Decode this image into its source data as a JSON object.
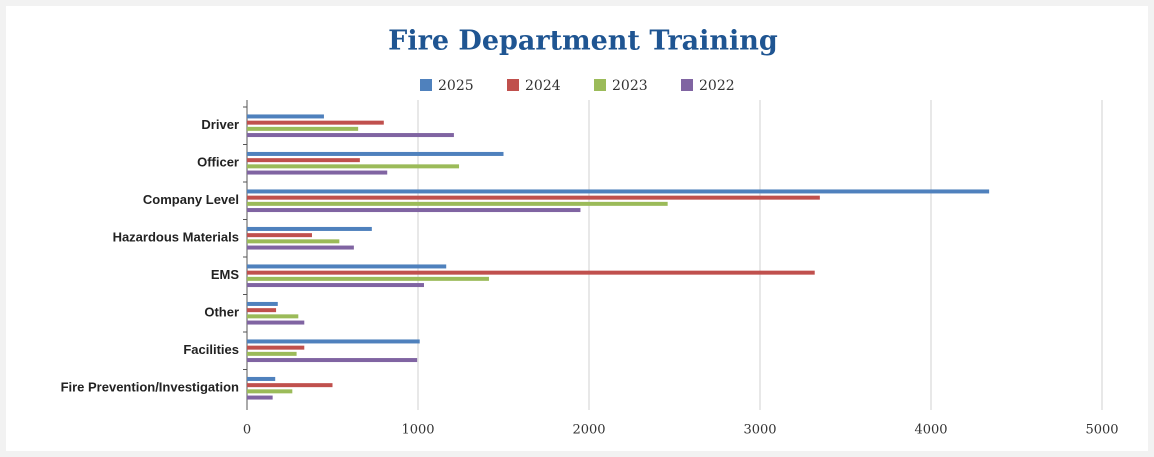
{
  "chart_data": {
    "type": "hbar",
    "title": "Fire Department Training",
    "categories": [
      "Driver",
      "Officer",
      "Company Level",
      "Hazardous Materials",
      "EMS",
      "Other",
      "Facilities",
      "Fire Prevention/Investigation"
    ],
    "series": [
      {
        "name": "2025",
        "color": "#4f81bd",
        "values": [
          450,
          1500,
          4340,
          730,
          1165,
          180,
          1010,
          165
        ]
      },
      {
        "name": "2024",
        "color": "#c0504d",
        "values": [
          800,
          660,
          3350,
          380,
          3320,
          170,
          335,
          500
        ]
      },
      {
        "name": "2023",
        "color": "#9bbb59",
        "values": [
          650,
          1240,
          2460,
          540,
          1415,
          300,
          290,
          265
        ]
      },
      {
        "name": "2022",
        "color": "#8064a2",
        "values": [
          1210,
          820,
          1950,
          625,
          1035,
          335,
          995,
          150
        ]
      }
    ],
    "xlim": [
      0,
      5000
    ],
    "xticks": [
      0,
      1000,
      2000,
      3000,
      4000,
      5000
    ],
    "grid": true,
    "legend": "top"
  }
}
